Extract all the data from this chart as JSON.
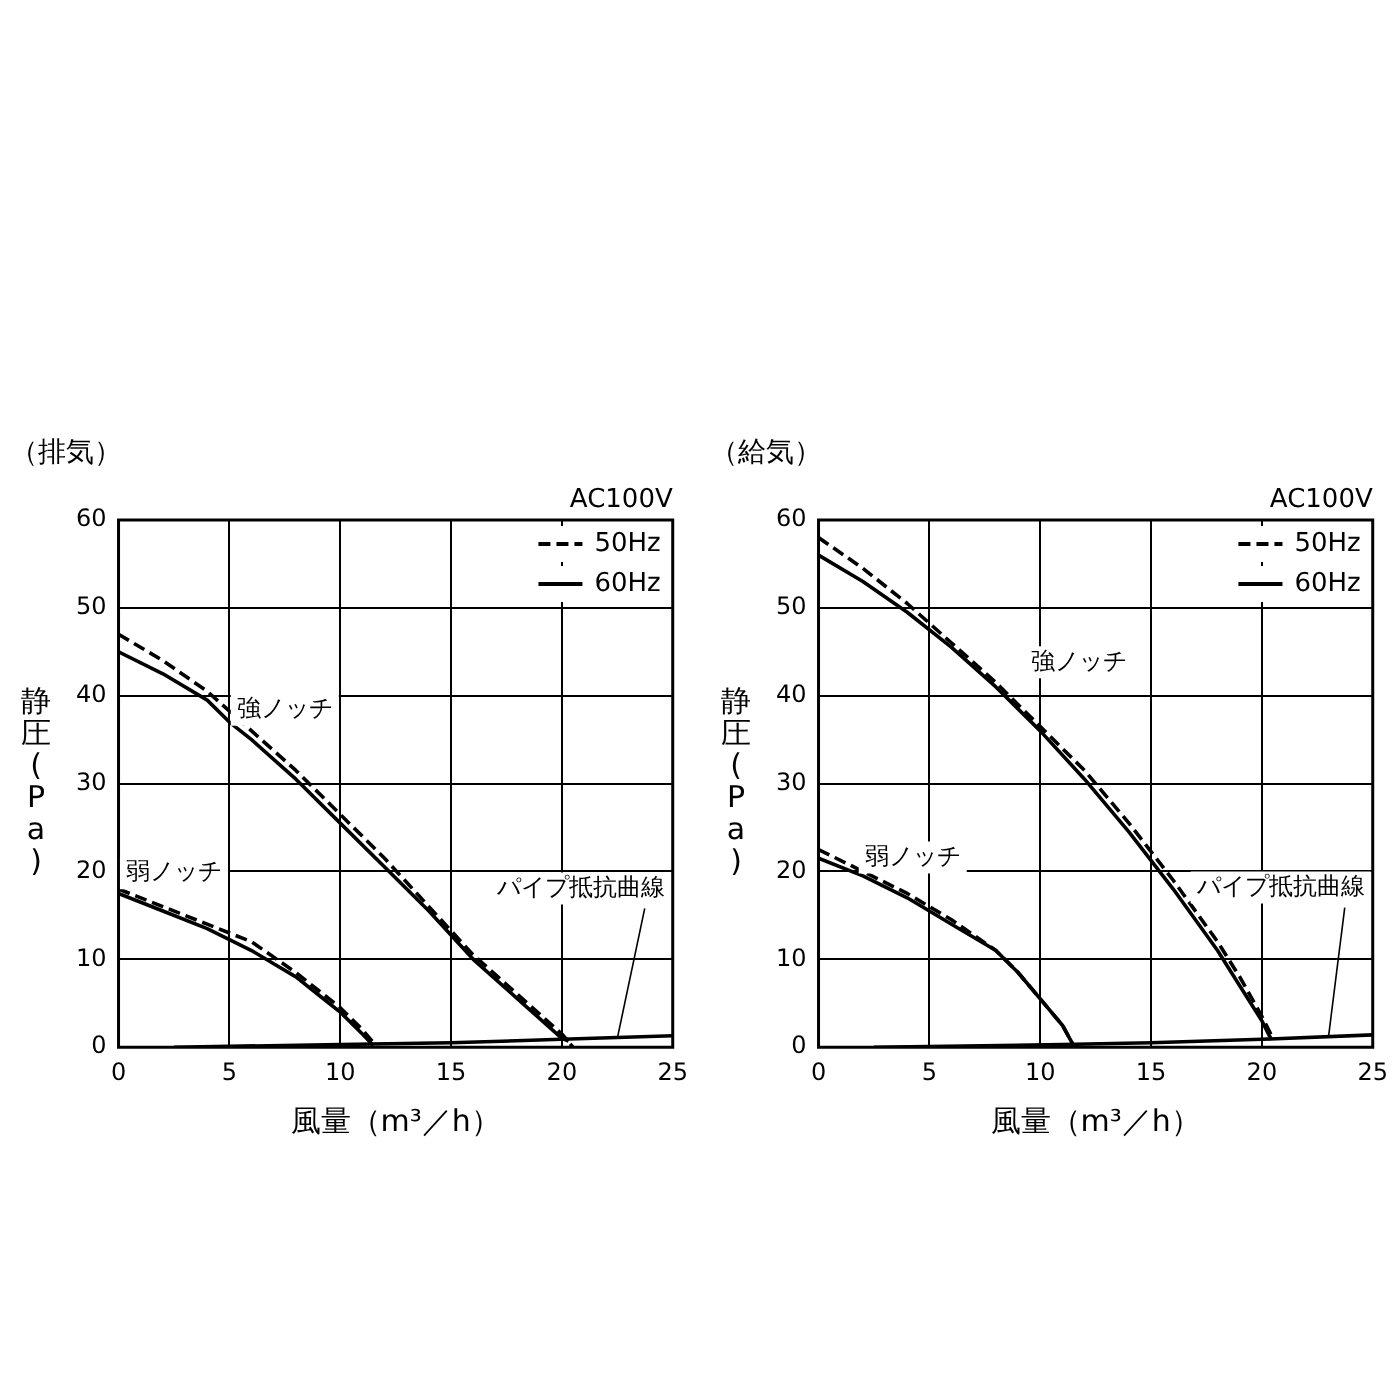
{
  "chart_data": [
    {
      "type": "line",
      "title": "（排気）",
      "xlabel": "風量（m³／h）",
      "ylabel": "静圧(Pa)",
      "legend_title": "AC100V",
      "xlim": [
        0,
        25
      ],
      "xticks": [
        0,
        5,
        10,
        15,
        20,
        25
      ],
      "ylim": [
        0,
        60
      ],
      "yticks": [
        0,
        10,
        20,
        30,
        40,
        50,
        60
      ],
      "grid": true,
      "legend": "top right",
      "marker": "none",
      "series": [
        {
          "name": "50Hz",
          "color": "#000000",
          "line_style": "dashed",
          "x": [
            0,
            2,
            4,
            6,
            8,
            10,
            12,
            14,
            16,
            18,
            20,
            20.5
          ],
          "values": [
            47,
            44,
            40.5,
            36,
            31.5,
            26.5,
            21.5,
            16,
            10.5,
            6,
            1.5,
            0
          ]
        },
        {
          "name": "60Hz",
          "color": "#000000",
          "line_style": "solid",
          "x": [
            0,
            2,
            4,
            5,
            6,
            8,
            10,
            12,
            14,
            16,
            18,
            20,
            20.3
          ],
          "values": [
            45,
            42.5,
            39.5,
            37,
            35,
            30.5,
            25.5,
            20.5,
            15.5,
            10,
            5.5,
            1,
            0.7
          ]
        },
        {
          "color": "#000000",
          "line_style": "dashed",
          "x": [
            0,
            2,
            4,
            6,
            8,
            10,
            11,
            11.6
          ],
          "values": [
            18,
            16,
            14,
            12,
            8.5,
            4.5,
            2,
            0.2
          ]
        },
        {
          "color": "#000000",
          "line_style": "solid",
          "x": [
            0,
            2,
            4,
            6,
            7,
            8,
            9,
            10,
            11,
            11.5
          ],
          "values": [
            17.5,
            15.5,
            13.5,
            11,
            9.5,
            8,
            6,
            4,
            1.5,
            0.2
          ]
        },
        {
          "color": "#000000",
          "line_style": "solid",
          "x": [
            2.5,
            10,
            15,
            20,
            25
          ],
          "values": [
            0,
            0.3,
            0.5,
            0.9,
            1.3
          ]
        }
      ],
      "annotations": [
        "強ノッチ",
        "弱ノッチ",
        {
          "text": "パイプ抵抗曲線",
          "x": 22.5,
          "y": 1
        }
      ]
    },
    {
      "type": "line",
      "title": "（給気）",
      "xlabel": "風量（m³／h）",
      "ylabel": "静圧(Pa)",
      "legend_title": "AC100V",
      "xlim": [
        0,
        25
      ],
      "xticks": [
        0,
        5,
        10,
        15,
        20,
        25
      ],
      "ylim": [
        0,
        60
      ],
      "yticks": [
        0,
        10,
        20,
        30,
        40,
        50,
        60
      ],
      "grid": true,
      "legend": "top right",
      "marker": "none",
      "series": [
        {
          "name": "50Hz",
          "color": "#000000",
          "line_style": "dashed",
          "x": [
            0,
            2,
            4,
            6,
            8,
            10,
            12,
            14,
            16,
            18,
            19,
            20,
            20.5
          ],
          "values": [
            58,
            54.5,
            50.5,
            46,
            41.5,
            36.5,
            31.5,
            25.5,
            19,
            12,
            8,
            3.5,
            1
          ]
        },
        {
          "name": "60Hz",
          "color": "#000000",
          "line_style": "solid",
          "x": [
            0,
            2,
            4,
            6,
            8,
            10,
            12,
            14,
            16,
            18,
            19,
            20,
            20.4
          ],
          "values": [
            56,
            53,
            49.5,
            45.5,
            41,
            36,
            30.5,
            24.5,
            18,
            11,
            7,
            3,
            1
          ]
        },
        {
          "color": "#000000",
          "line_style": "dashed",
          "x": [
            0,
            2,
            4,
            6,
            8,
            9,
            10,
            11,
            11.5
          ],
          "values": [
            22.5,
            20,
            17.5,
            14.5,
            11,
            8.5,
            5.5,
            2.5,
            0.2
          ]
        },
        {
          "color": "#000000",
          "line_style": "solid",
          "x": [
            0,
            2,
            4,
            6,
            8,
            9,
            10,
            11,
            11.5
          ],
          "values": [
            21.5,
            19.5,
            17,
            14,
            11,
            8.5,
            5.5,
            2.5,
            0.2
          ]
        },
        {
          "color": "#000000",
          "line_style": "solid",
          "x": [
            2.5,
            11,
            15,
            20,
            25
          ],
          "values": [
            0,
            0.3,
            0.5,
            0.9,
            1.4
          ]
        }
      ],
      "annotations": [
        "強ノッチ",
        "弱ノッチ",
        {
          "text": "パイプ抵抗曲線",
          "x": 23,
          "y": 1.1
        }
      ]
    }
  ]
}
